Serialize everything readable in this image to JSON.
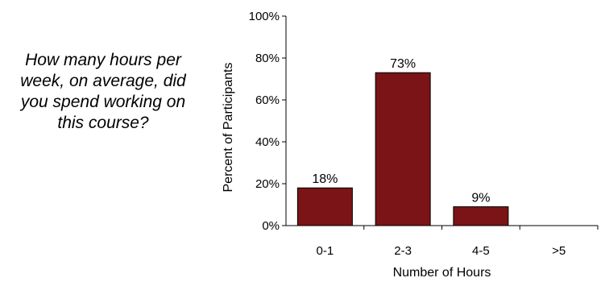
{
  "question": "How many hours per week, on average, did you spend working on this course?",
  "chart_data": {
    "type": "bar",
    "categories": [
      "0-1",
      "2-3",
      "4-5",
      ">5"
    ],
    "values": [
      18,
      73,
      9,
      0
    ],
    "data_labels": [
      "18%",
      "73%",
      "9%",
      ""
    ],
    "title": "",
    "xlabel": "Number of Hours",
    "ylabel": "Percent of Participants",
    "ylim": [
      0,
      100
    ],
    "yticks": [
      "0%",
      "20%",
      "40%",
      "60%",
      "80%",
      "100%"
    ],
    "grid": false,
    "legend": "none",
    "bar_color": "#7b1416"
  }
}
